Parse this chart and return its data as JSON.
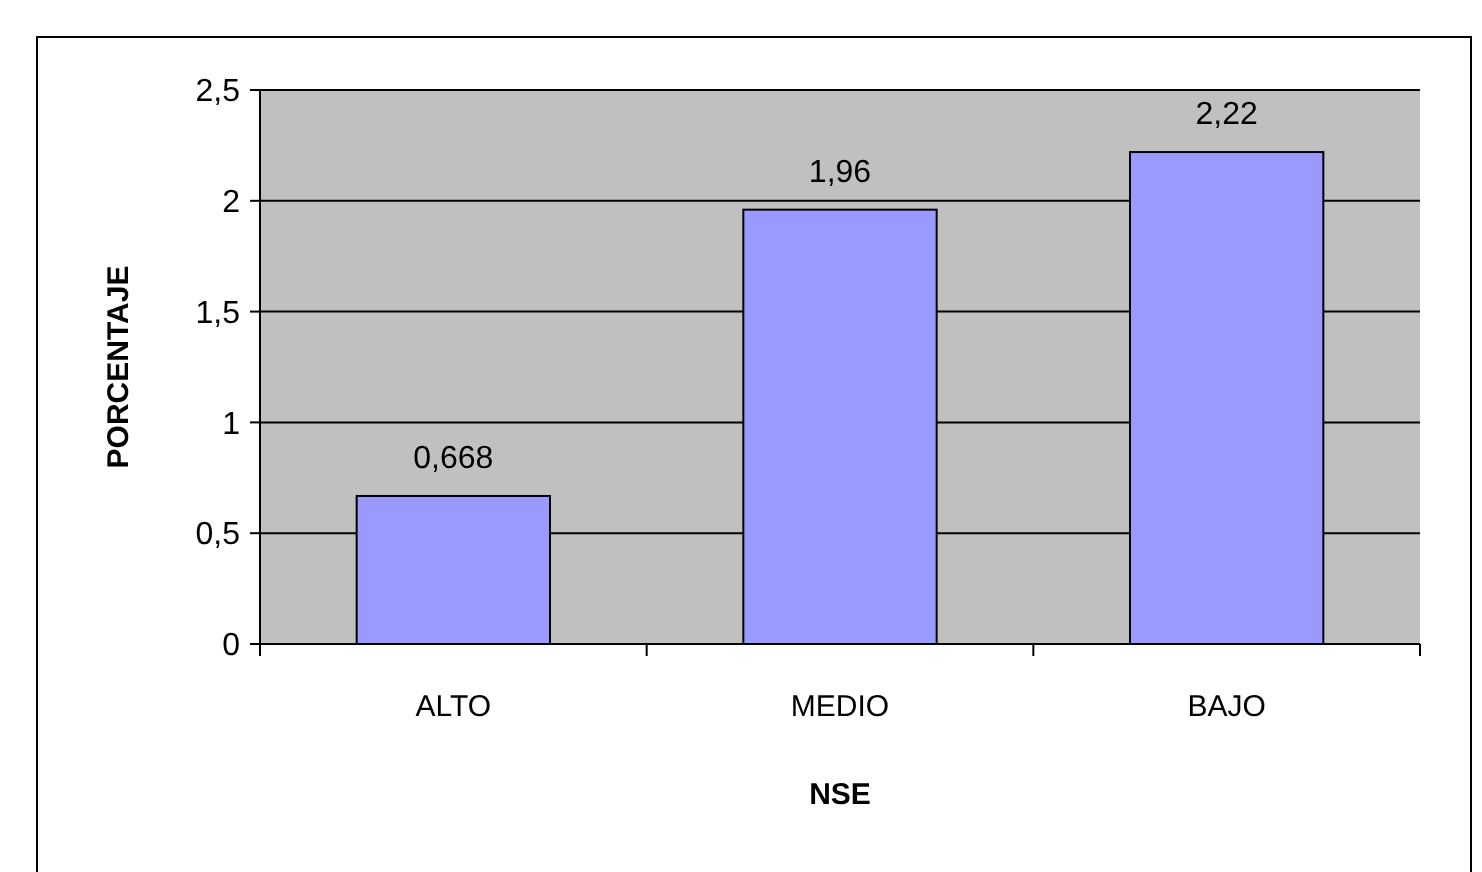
{
  "chart_data": {
    "type": "bar",
    "xlabel": "NSE",
    "ylabel": "PORCENTAJE",
    "categories": [
      "ALTO",
      "MEDIO",
      "BAJO"
    ],
    "values": [
      0.668,
      1.96,
      2.22
    ],
    "value_labels": [
      "0,668",
      "1,96",
      "2,22"
    ],
    "color": "#9999ff",
    "ylim": [
      0,
      2.5
    ],
    "yticks": [
      0,
      {
        "value": 0.5,
        "label": "0,5"
      },
      1,
      {
        "value": 1.5,
        "label": "1,5"
      },
      2,
      {
        "value": 2.5,
        "label": "2,5"
      }
    ],
    "grid": "y"
  }
}
